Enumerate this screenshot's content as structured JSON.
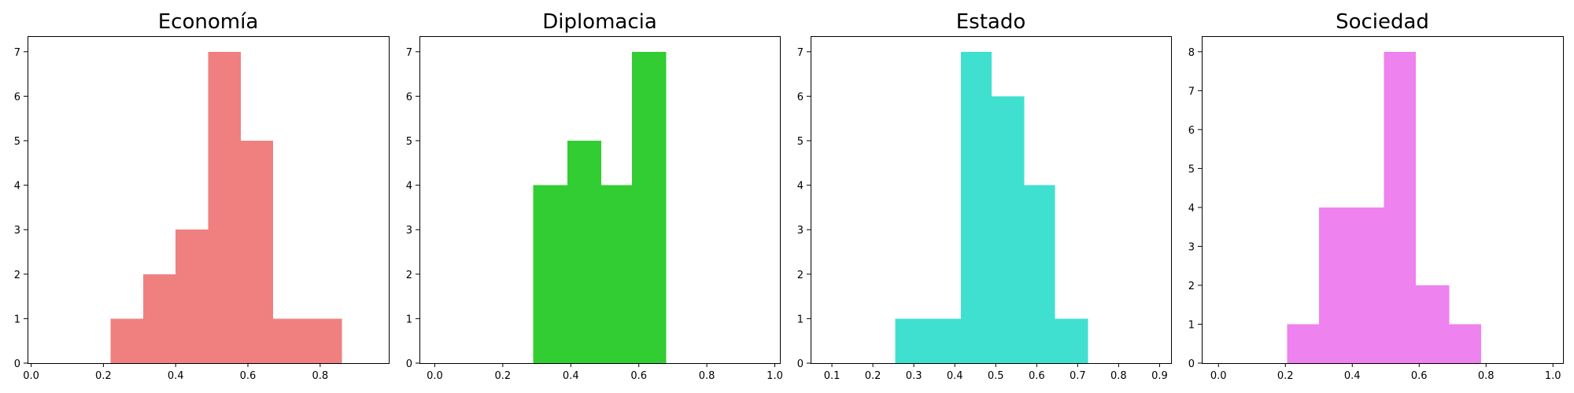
{
  "chart_data": [
    {
      "type": "histogram",
      "title": "Economía",
      "color": "#f08080",
      "xlim": [
        -0.01,
        0.99
      ],
      "ylim": [
        0,
        7.35
      ],
      "xticks": [
        "0.0",
        "0.2",
        "0.4",
        "0.6",
        "0.8"
      ],
      "xtick_values": [
        0.0,
        0.2,
        0.4,
        0.6,
        0.8
      ],
      "yticks": [
        "0",
        "1",
        "2",
        "3",
        "4",
        "5",
        "6",
        "7"
      ],
      "ytick_values": [
        0,
        1,
        2,
        3,
        4,
        5,
        6,
        7
      ],
      "bins": [
        {
          "x0": 0.22,
          "x1": 0.31,
          "count": 1
        },
        {
          "x0": 0.31,
          "x1": 0.4,
          "count": 2
        },
        {
          "x0": 0.4,
          "x1": 0.49,
          "count": 3
        },
        {
          "x0": 0.49,
          "x1": 0.58,
          "count": 7
        },
        {
          "x0": 0.58,
          "x1": 0.67,
          "count": 5
        },
        {
          "x0": 0.67,
          "x1": 0.76,
          "count": 1
        },
        {
          "x0": 0.76,
          "x1": 0.86,
          "count": 1
        }
      ]
    },
    {
      "type": "histogram",
      "title": "Diplomacia",
      "color": "#32cd32",
      "xlim": [
        -0.045,
        1.015
      ],
      "ylim": [
        0,
        7.35
      ],
      "xticks": [
        "0.0",
        "0.2",
        "0.4",
        "0.6",
        "0.8",
        "1.0"
      ],
      "xtick_values": [
        0.0,
        0.2,
        0.4,
        0.6,
        0.8,
        1.0
      ],
      "yticks": [
        "0",
        "1",
        "2",
        "3",
        "4",
        "5",
        "6",
        "7"
      ],
      "ytick_values": [
        0,
        1,
        2,
        3,
        4,
        5,
        6,
        7
      ],
      "bins": [
        {
          "x0": 0.29,
          "x1": 0.39,
          "count": 4
        },
        {
          "x0": 0.39,
          "x1": 0.49,
          "count": 5
        },
        {
          "x0": 0.49,
          "x1": 0.58,
          "count": 4
        },
        {
          "x0": 0.58,
          "x1": 0.68,
          "count": 7
        }
      ]
    },
    {
      "type": "histogram",
      "title": "Estado",
      "color": "#40e0d0",
      "xlim": [
        0.048,
        0.928
      ],
      "ylim": [
        0,
        7.35
      ],
      "xticks": [
        "0.1",
        "0.2",
        "0.3",
        "0.4",
        "0.5",
        "0.6",
        "0.7",
        "0.8",
        "0.9"
      ],
      "xtick_values": [
        0.1,
        0.2,
        0.3,
        0.4,
        0.5,
        0.6,
        0.7,
        0.8,
        0.9
      ],
      "yticks": [
        "0",
        "1",
        "2",
        "3",
        "4",
        "5",
        "6",
        "7"
      ],
      "ytick_values": [
        0,
        1,
        2,
        3,
        4,
        5,
        6,
        7
      ],
      "bins": [
        {
          "x0": 0.255,
          "x1": 0.335,
          "count": 1
        },
        {
          "x0": 0.335,
          "x1": 0.415,
          "count": 1
        },
        {
          "x0": 0.415,
          "x1": 0.49,
          "count": 7
        },
        {
          "x0": 0.49,
          "x1": 0.57,
          "count": 6
        },
        {
          "x0": 0.57,
          "x1": 0.645,
          "count": 4
        },
        {
          "x0": 0.645,
          "x1": 0.725,
          "count": 1
        }
      ]
    },
    {
      "type": "histogram",
      "title": "Sociedad",
      "color": "#ee82ee",
      "xlim": [
        -0.05,
        1.03
      ],
      "ylim": [
        0,
        8.4
      ],
      "xticks": [
        "0.0",
        "0.2",
        "0.4",
        "0.6",
        "0.8",
        "1.0"
      ],
      "xtick_values": [
        0.0,
        0.2,
        0.4,
        0.6,
        0.8,
        1.0
      ],
      "yticks": [
        "0",
        "1",
        "2",
        "3",
        "4",
        "5",
        "6",
        "7",
        "8"
      ],
      "ytick_values": [
        0,
        1,
        2,
        3,
        4,
        5,
        6,
        7,
        8
      ],
      "bins": [
        {
          "x0": 0.205,
          "x1": 0.3,
          "count": 1
        },
        {
          "x0": 0.3,
          "x1": 0.4,
          "count": 4
        },
        {
          "x0": 0.4,
          "x1": 0.495,
          "count": 4
        },
        {
          "x0": 0.495,
          "x1": 0.59,
          "count": 8
        },
        {
          "x0": 0.59,
          "x1": 0.69,
          "count": 2
        },
        {
          "x0": 0.69,
          "x1": 0.785,
          "count": 1
        }
      ]
    }
  ]
}
